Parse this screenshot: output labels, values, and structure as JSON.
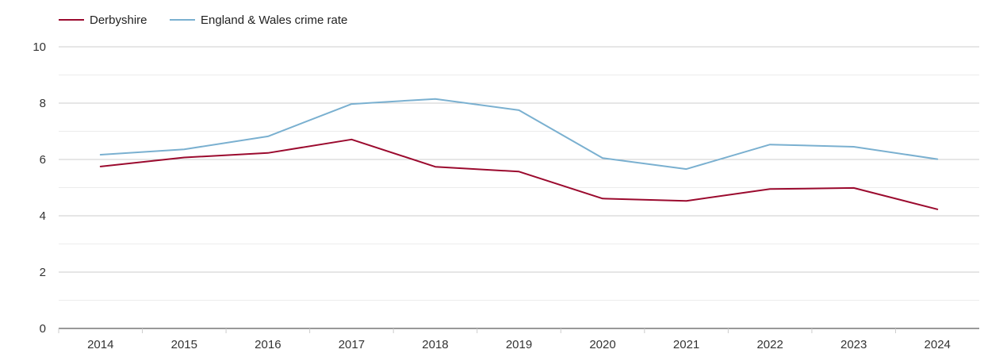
{
  "chart_data": {
    "type": "line",
    "title": "",
    "xlabel": "",
    "ylabel": "",
    "x": [
      "2014",
      "2015",
      "2016",
      "2017",
      "2018",
      "2019",
      "2020",
      "2021",
      "2022",
      "2023",
      "2024"
    ],
    "ylim": [
      0,
      10
    ],
    "yticks": [
      "0",
      "2",
      "4",
      "6",
      "8",
      "10"
    ],
    "grid": true,
    "legend_position": "top-left",
    "series": [
      {
        "name": "Derbyshire",
        "color": "#9b0a2e",
        "values": [
          5.75,
          6.07,
          6.23,
          6.71,
          5.74,
          5.57,
          4.61,
          4.53,
          4.95,
          4.99,
          4.23
        ]
      },
      {
        "name": "England & Wales crime rate",
        "color": "#7ab0d0",
        "values": [
          6.17,
          6.36,
          6.82,
          7.97,
          8.15,
          7.75,
          6.05,
          5.66,
          6.53,
          6.45,
          6.01
        ]
      }
    ]
  }
}
